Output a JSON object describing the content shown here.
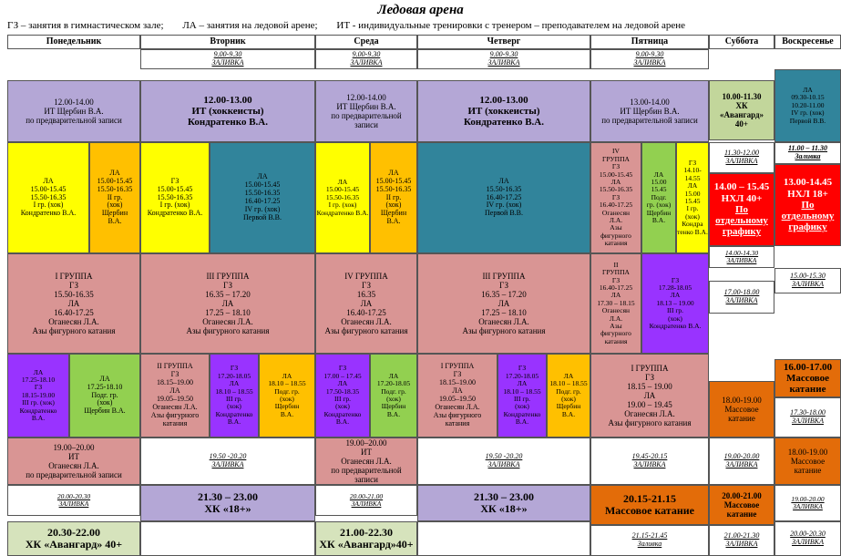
{
  "title": "Ледовая арена",
  "legend": [
    "ГЗ – занятия в гимнастическом зале;",
    "ЛА – занятия на ледовой арене;",
    "ИТ - индивидуальные тренировки с тренером – преподавателем на ледовой арене"
  ],
  "days": [
    "Понедельник",
    "Вторник",
    "Среда",
    "Четверг",
    "Пятница",
    "Суббота",
    "Воскресенье"
  ],
  "colors": {
    "lilac": "#b4a7d6",
    "yellow": "#ffff00",
    "orange": "#ffc000",
    "teal": "#31849b",
    "pink": "#d99594",
    "violet": "#9933ff",
    "green": "#92d050",
    "red": "#ff0000",
    "burnt": "#e36c09",
    "olive": "#c2d69b",
    "tan": "#f2dbdb",
    "pale": "#d6e3bc",
    "gray": "#d9d9d9"
  },
  "cells": {
    "tue_fill": [
      "9.00-9.30",
      "ЗАЛИВКА"
    ],
    "wed_fill": [
      "9.00-9.30",
      "ЗАЛИВКА"
    ],
    "thu_fill": [
      "9.00-9.30",
      "ЗАЛИВКА"
    ],
    "fri_fill": [
      "9.00-9.30",
      "ЗАЛИВКА"
    ],
    "mon_it": [
      "12.00-14.00",
      "ИТ Щербин В.А.",
      "по предварительной записи"
    ],
    "tue_it": [
      "12.00-13.00",
      "ИТ (хоккеисты)",
      "Кондратенко В.А."
    ],
    "wed_it": [
      "12.00-14.00",
      "ИТ Щербин В.А.",
      "по предварительной",
      "записи"
    ],
    "thu_it": [
      "12.00-13.00",
      "ИТ (хоккеисты)",
      "Кондратенко В.А."
    ],
    "fri_it": [
      "13.00-14.00",
      "ИТ Щербин В.А.",
      "по предварительной записи"
    ],
    "sat_avg": [
      "10.00-11.30",
      "ХК",
      "«Авангард»",
      "40+"
    ],
    "sun_la": [
      "ЛА",
      "09.30-10.15",
      "10.20-11.00",
      "IV гр. (хок)",
      "Первой В.В."
    ],
    "sun_fill1": [
      "11.00 – 11.30",
      "Заливка"
    ],
    "mon_la1": [
      "ЛА",
      "15.00-15.45",
      "15.50-16.35",
      "I гр. (хок)",
      "Кондратенко В.А."
    ],
    "mon_la2": [
      "ЛА",
      "15.00-15.45",
      "15.50-16.35",
      "II гр.",
      "(хок)",
      "Щербин",
      "В.А."
    ],
    "tue_gz1": [
      "ГЗ",
      "15.00-15.45",
      "15.50-16.35",
      "I гр. (хок)",
      "Кондратенко В.А."
    ],
    "tue_la": [
      "ЛА",
      "15.00-15.45",
      "15.50-16.35",
      "16.40-17.25",
      "IV гр. (хок)",
      "Первой В.В."
    ],
    "wed_la1": [
      "ЛА",
      "15.00-15.45",
      "15.50-16.35",
      "I гр. (хок)",
      "Кондратенко В.А."
    ],
    "wed_la2": [
      "ЛА",
      "15.00-15.45",
      "15.50-16.35",
      "II гр.",
      "(хок)",
      "Щербин",
      "В.А."
    ],
    "thu_la": [
      "ЛА",
      "15.50-16.35",
      "16.40-17.25",
      "IV гр. (хок)",
      "Первой В.В."
    ],
    "fri_iv": [
      "IV",
      "ГРУППА",
      "ГЗ",
      "15.00-15.45",
      "ЛА",
      "15.50-16.35",
      "ГЗ",
      "16.40-17.25",
      "Оганесян",
      "Л.А.",
      "Азы",
      "фигурного",
      "катания"
    ],
    "fri_la_podg": [
      "ЛА",
      "15.00",
      "15.45",
      "Подг.",
      "гр. (хок)",
      "Щербин",
      "В.А."
    ],
    "fri_gz": [
      "ГЗ",
      "14.10-",
      "14.55",
      "ЛА",
      "15.00",
      "15.45",
      "I гр.",
      "(хок)",
      "Кондра",
      "тенко В.А."
    ],
    "sat_fill1": [
      "11.30-12.00",
      "ЗАЛИВКА"
    ],
    "sat_nhl": [
      "14.00 – 15.45",
      "НХЛ 40+",
      "По",
      "отдельному",
      "графику"
    ],
    "sun_nhl": [
      "13.00-14.45",
      "НХЛ 18+",
      "По",
      "отдельному",
      "графику"
    ],
    "sat_fill2": [
      "14.00-14.30",
      "ЗАЛИВКА"
    ],
    "sun_fill2": [
      "15.00-15.30",
      "ЗАЛИВКА"
    ],
    "mon_grp1": [
      "I ГРУППА",
      "ГЗ",
      "15.50-16.35",
      "ЛА",
      "16.40-17.25",
      "Оганесян Л.А.",
      "Азы фигурного катания"
    ],
    "tue_grp3": [
      "III ГРУППА",
      "ГЗ",
      "16.35 – 17.20",
      "ЛА",
      "17.25 – 18.10",
      "Оганесян Л.А.",
      "Азы фигурного катания"
    ],
    "wed_grp4": [
      "IV ГРУППА",
      "ГЗ",
      "16.35",
      "ЛА",
      "16.40-17.25",
      "Оганесян Л.А.",
      "Азы фигурного катания"
    ],
    "thu_grp3": [
      "III ГРУППА",
      "ГЗ",
      "16.35 – 17.20",
      "ЛА",
      "17.25 – 18.10",
      "Оганесян Л.А.",
      "Азы фигурного катания"
    ],
    "fri_grp2": [
      "II",
      "ГРУППА",
      "ГЗ",
      "16.40-17.25",
      "ЛА",
      "17.30 – 18.15",
      "Оганесян",
      "Л.А.",
      "Азы",
      "фигурного",
      "катания"
    ],
    "fri_gz3": [
      "ГЗ",
      "17.28-18.05",
      "ЛА",
      "18.13 – 19.00",
      "III гр.",
      "(хок)",
      "Кондратенко В.А."
    ],
    "sat_fill3": [
      "17.00-18.00",
      "ЗАЛИВКА"
    ],
    "sun_mass1": [
      "16.00-17.00",
      "Массовое",
      "катание"
    ],
    "mon_la3": [
      "ЛА",
      "17.25-18.10",
      "ГЗ",
      "18.15-19.00",
      "III гр. (хок)",
      "Кондратенко",
      "В.А."
    ],
    "mon_la4": [
      "ЛА",
      "17.25-18.10",
      "Подг. гр.",
      "(хок)",
      "Щербин В.А."
    ],
    "tue_grp2": [
      "II ГРУППА",
      "ГЗ",
      "18.15–19.00",
      "ЛА",
      "19.05–19.50",
      "Оганесян Л.А.",
      "Азы фигурного",
      "катания"
    ],
    "tue_gz3": [
      "ГЗ",
      "17.20-18.05",
      "ЛА",
      "18.10 – 18.55",
      "III гр.",
      "(хок)",
      "Кондратенко",
      "В.А."
    ],
    "tue_la_podg": [
      "ЛА",
      "18.10 – 18.55",
      "Подг. гр.",
      "(хок)",
      "Щербин",
      "В.А."
    ],
    "wed_gz3": [
      "ГЗ",
      "17.00 – 17.45",
      "ЛА",
      "17.50-18.35",
      "III гр.",
      "(хок)",
      "Кондратенко",
      "В.А."
    ],
    "wed_la_podg": [
      "ЛА",
      "17.20-18.05",
      "Подг. гр.",
      "(хок)",
      "Щербин",
      "В.А."
    ],
    "thu_grp1": [
      "I ГРУППА",
      "ГЗ",
      "18.15–19.00",
      "ЛА",
      "19.05–19.50",
      "Оганесян Л.А.",
      "Азы фигурного",
      "катания"
    ],
    "thu_gz3": [
      "ГЗ",
      "17.20-18.05",
      "ЛА",
      "18.10 – 18.55",
      "III гр.",
      "(хок)",
      "Кондратенко",
      "В.А."
    ],
    "thu_la_podg": [
      "ЛА",
      "18.10 – 18.55",
      "Подг. гр.",
      "(хок)",
      "Щербин",
      "В.А."
    ],
    "fri_grp1": [
      "I ГРУППА",
      "ГЗ",
      "18.15 – 19.00",
      "ЛА",
      "19.00 – 19.45",
      "Оганесян Л.А.",
      "Азы фигурного катания"
    ],
    "sat_mass1": [
      "18.00-19.00",
      "Массовое",
      "катание"
    ],
    "sun_fill3": [
      "17.30-18.00",
      "ЗАЛИВКА"
    ],
    "mon_it2": [
      "19.00–20.00",
      "ИТ",
      "Оганесян Л.А.",
      "по предварительной записи"
    ],
    "tue_fill2": [
      "19.50 -20.20",
      "ЗАЛИВКА"
    ],
    "wed_it2": [
      "19.00–20.00",
      "ИТ",
      "Оганесян Л.А.",
      "по предварительной",
      "записи"
    ],
    "thu_fill2": [
      "19.50 -20.20",
      "ЗАЛИВКА"
    ],
    "fri_fill2": [
      "19.45-20.15",
      "ЗАЛИВКА"
    ],
    "sat_fill4": [
      "19.00-20.00",
      "ЗАЛИВКА"
    ],
    "sun_mass2": [
      "18.00-19.00",
      "Массовое",
      "катание"
    ],
    "mon_fill3": [
      "20.00-20.30",
      "ЗАЛИВКА"
    ],
    "tue_hk": [
      "21.30 – 23.00",
      "ХК «18+»"
    ],
    "wed_fill3": [
      "20.00-21.00",
      "ЗАЛИВКА"
    ],
    "thu_hk": [
      "21.30 – 23.00",
      "ХК «18+»"
    ],
    "fri_mass": [
      "20.15-21.15",
      "Массовое катание"
    ],
    "sat_mass2": [
      "20.00-21.00",
      "Массовое",
      "катание"
    ],
    "sun_fill4": [
      "19.00-20.00",
      "ЗАЛИВКА"
    ],
    "mon_avg": [
      "20.30-22.00",
      "ХК «Авангард» 40+"
    ],
    "wed_avg": [
      "21.00-22.30",
      "ХК «Авангард»40+"
    ],
    "fri_fill3": [
      "21.15-21.45",
      "Заливка"
    ],
    "sat_fill5": [
      "21.00-21.30",
      "ЗАЛИВКА"
    ],
    "sun_fill5": [
      "20.00-20.30",
      "ЗАЛИВКА"
    ]
  }
}
